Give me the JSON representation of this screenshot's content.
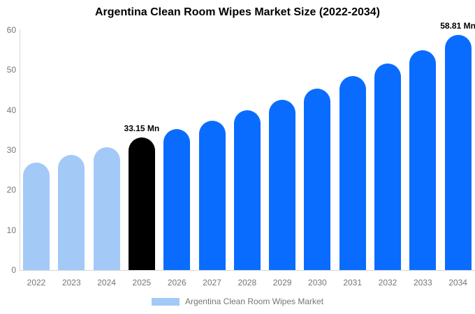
{
  "chart_data": {
    "type": "bar",
    "title": "Argentina Clean Room Wipes Market Size (2022-2034)",
    "unit": "Mn",
    "categories": [
      "2022",
      "2023",
      "2024",
      "2025",
      "2026",
      "2027",
      "2028",
      "2029",
      "2030",
      "2031",
      "2032",
      "2033",
      "2034"
    ],
    "values": [
      26.9,
      28.8,
      30.7,
      33.15,
      35.2,
      37.4,
      39.9,
      42.6,
      45.4,
      48.5,
      51.6,
      55.0,
      58.81
    ],
    "bar_colors": [
      "#A3C9F7",
      "#A3C9F7",
      "#A3C9F7",
      "#000000",
      "#0A6CFF",
      "#0A6CFF",
      "#0A6CFF",
      "#0A6CFF",
      "#0A6CFF",
      "#0A6CFF",
      "#0A6CFF",
      "#0A6CFF",
      "#0A6CFF"
    ],
    "annotations": [
      {
        "index": 3,
        "text": "33.15 Mn"
      },
      {
        "index": 12,
        "text": "58.81 Mn"
      }
    ],
    "yticks": [
      0,
      10,
      20,
      30,
      40,
      50,
      60
    ],
    "ylim": [
      0,
      60
    ],
    "xlabel": "",
    "ylabel": "",
    "grid": false,
    "legend": {
      "label": "Argentina Clean Room Wipes Market",
      "swatch_color": "#A3C9F7",
      "position": "bottom"
    },
    "colors": {
      "historical_bar": "#A3C9F7",
      "highlight_bar": "#000000",
      "forecast_bar": "#0A6CFF",
      "axis_text": "#757575",
      "axis_line": "#d6d6d6",
      "title_text": "#000000"
    }
  }
}
